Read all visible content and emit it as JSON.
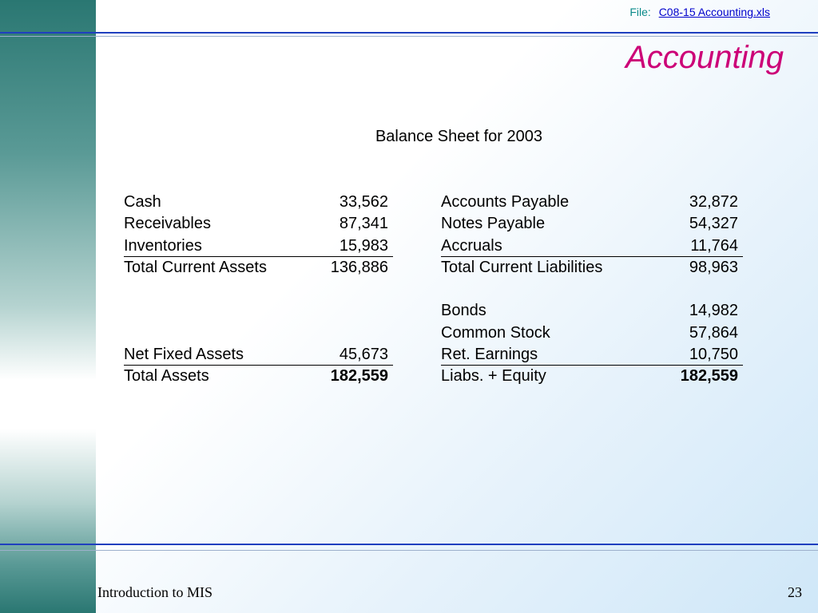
{
  "header": {
    "file_label": "File:",
    "file_name": "C08-15 Accounting.xls",
    "title": "Accounting"
  },
  "subtitle": "Balance Sheet for 2003",
  "assets": [
    {
      "label": "Cash",
      "value": "33,562"
    },
    {
      "label": "Receivables",
      "value": "87,341"
    },
    {
      "label": "Inventories",
      "value": "15,983"
    },
    {
      "label": "Total Current Assets",
      "value": "136,886"
    },
    {
      "label": "Net Fixed Assets",
      "value": "45,673"
    },
    {
      "label": "Total Assets",
      "value": "182,559"
    }
  ],
  "liabilities": [
    {
      "label": "Accounts Payable",
      "value": "32,872"
    },
    {
      "label": "Notes Payable",
      "value": "54,327"
    },
    {
      "label": "Accruals",
      "value": "11,764"
    },
    {
      "label": "Total Current Liabilities",
      "value": "98,963"
    },
    {
      "label": "Bonds",
      "value": "14,982"
    },
    {
      "label": "Common Stock",
      "value": "57,864"
    },
    {
      "label": "Ret. Earnings",
      "value": "10,750"
    },
    {
      "label": "Liabs. + Equity",
      "value": "182,559"
    }
  ],
  "footer": {
    "course": "Introduction to MIS",
    "page_number": "23"
  },
  "colors": {
    "title": "#cc0077",
    "rule": "#1f3fbf",
    "file_label": "#0a8a8a",
    "link": "#0000cc"
  }
}
